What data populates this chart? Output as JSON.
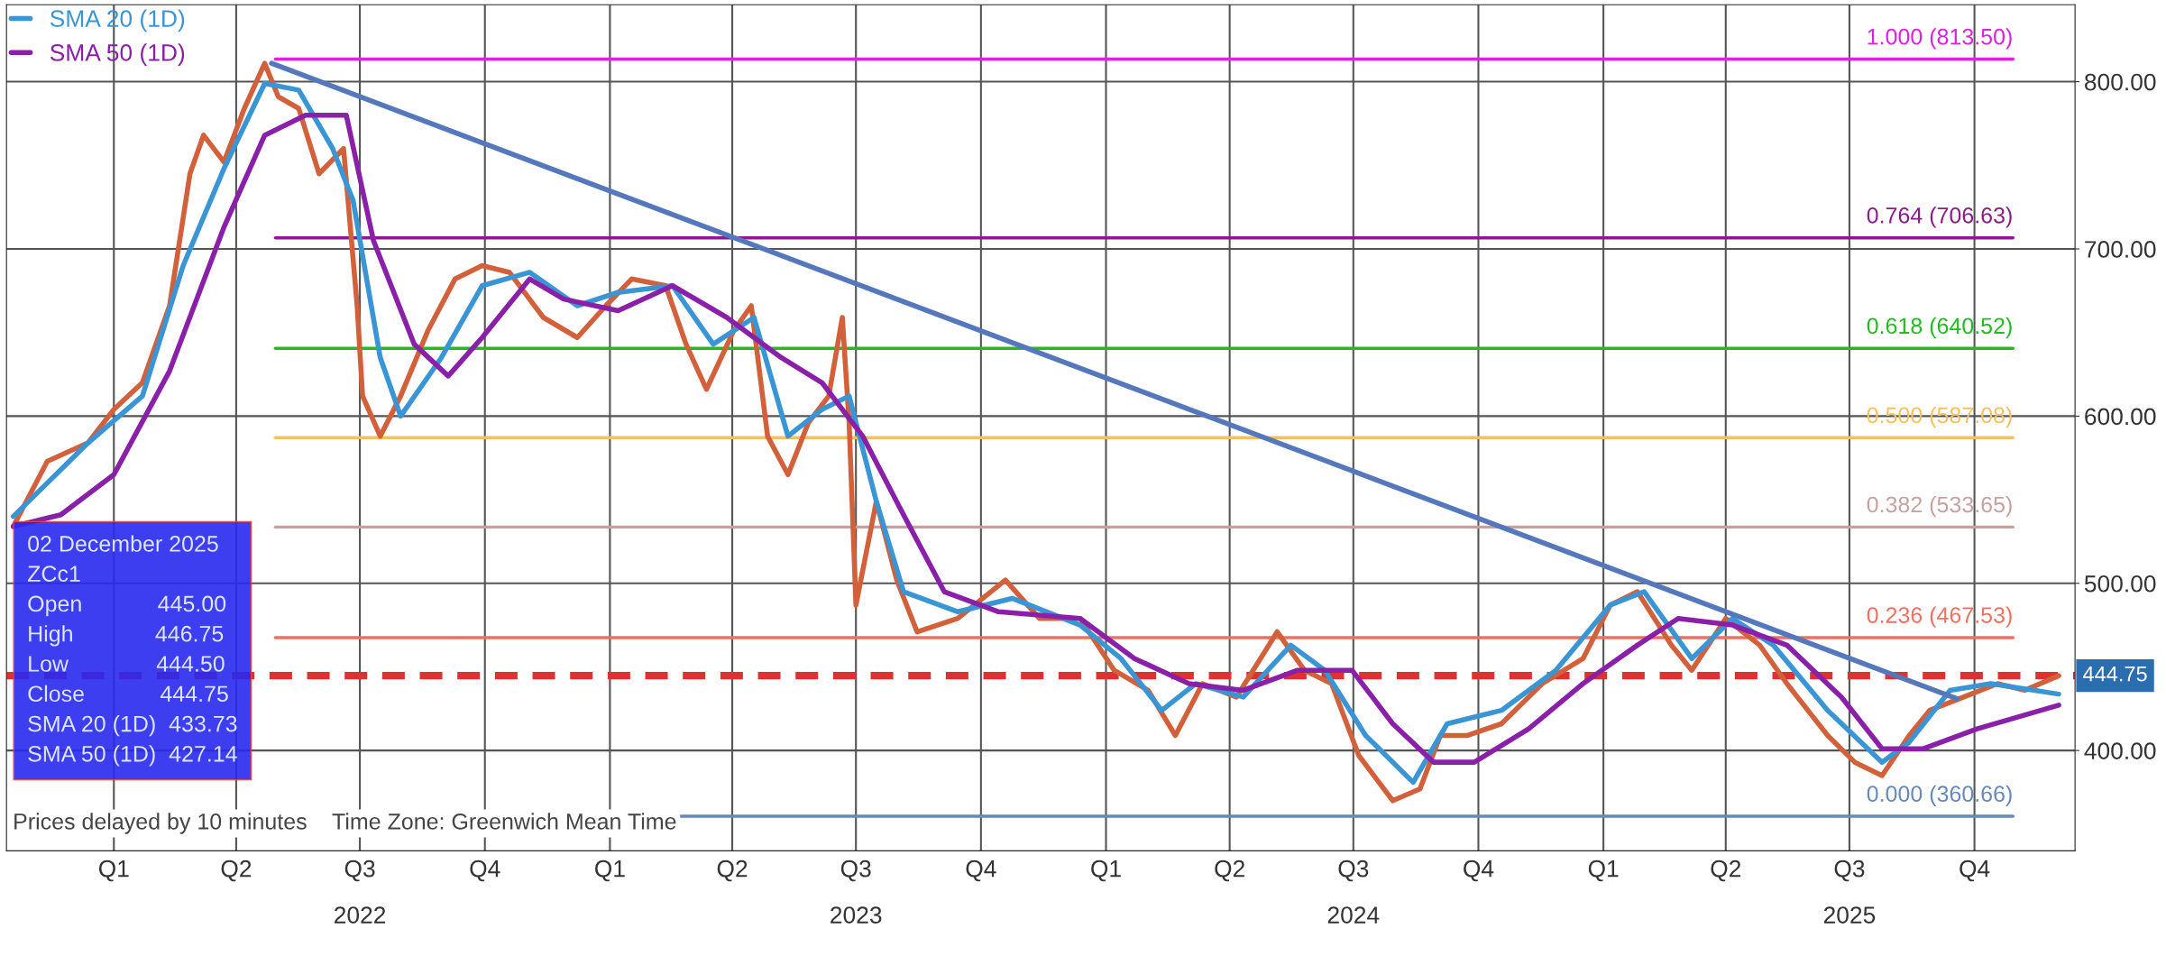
{
  "chart_data": {
    "type": "line",
    "xlim": [
      "2021-10-14",
      "2025-12-14"
    ],
    "ylim": [
      340,
      846
    ],
    "yticks": [
      {
        "value": 400,
        "label": "400.00"
      },
      {
        "value": 500,
        "label": "500.00"
      },
      {
        "value": 600,
        "label": "600.00"
      },
      {
        "value": 700,
        "label": "700.00"
      },
      {
        "value": 800,
        "label": "800.00"
      }
    ],
    "xticks": [
      {
        "value": "2022-01-01",
        "label": "Q1"
      },
      {
        "value": "2022-04-01",
        "label": "Q2"
      },
      {
        "value": "2022-07-01",
        "label": "Q3"
      },
      {
        "value": "2022-10-01",
        "label": "Q4"
      },
      {
        "value": "2023-01-01",
        "label": "Q1"
      },
      {
        "value": "2023-04-01",
        "label": "Q2"
      },
      {
        "value": "2023-07-01",
        "label": "Q3"
      },
      {
        "value": "2023-10-01",
        "label": "Q4"
      },
      {
        "value": "2024-01-01",
        "label": "Q1"
      },
      {
        "value": "2024-04-01",
        "label": "Q2"
      },
      {
        "value": "2024-07-01",
        "label": "Q3"
      },
      {
        "value": "2024-10-01",
        "label": "Q4"
      },
      {
        "value": "2025-01-01",
        "label": "Q1"
      },
      {
        "value": "2025-04-01",
        "label": "Q2"
      },
      {
        "value": "2025-07-01",
        "label": "Q3"
      },
      {
        "value": "2025-10-01",
        "label": "Q4"
      }
    ],
    "x2lim": [
      "2021-10-14",
      "2025-12-14"
    ],
    "x2ticks": [
      {
        "value": "2022-07-01",
        "label": "2022"
      },
      {
        "value": "2023-07-01",
        "label": "2023"
      },
      {
        "value": "2024-07-01",
        "label": "2024"
      },
      {
        "value": "2025-07-01",
        "label": "2025"
      }
    ],
    "grid": true,
    "legend": "top left",
    "series": [
      {
        "color": "#d2603a",
        "x": [
          "2021-10-19",
          "2021-11-13",
          "2021-12-13",
          "2022-01-01",
          "2022-01-22",
          "2022-02-11",
          "2022-02-26",
          "2022-03-08",
          "2022-03-23",
          "2022-04-07",
          "2022-04-22",
          "2022-05-02",
          "2022-05-17",
          "2022-06-01",
          "2022-06-19",
          "2022-06-29",
          "2022-07-03",
          "2022-07-16",
          "2022-07-31",
          "2022-08-20",
          "2022-09-09",
          "2022-09-29",
          "2022-10-19",
          "2022-11-13",
          "2022-12-08",
          "2022-12-29",
          "2023-01-17",
          "2023-02-11",
          "2023-02-26",
          "2023-03-13",
          "2023-04-02",
          "2023-04-15",
          "2023-04-27",
          "2023-05-12",
          "2023-05-27",
          "2023-06-11",
          "2023-06-21",
          "2023-06-26",
          "2023-07-01",
          "2023-07-16",
          "2023-07-31",
          "2023-08-15",
          "2023-09-14",
          "2023-10-19",
          "2023-11-13",
          "2023-12-13",
          "2024-01-07",
          "2024-02-01",
          "2024-02-21",
          "2024-03-12",
          "2024-04-06",
          "2024-05-06",
          "2024-05-26",
          "2024-06-15",
          "2024-07-05",
          "2024-07-30",
          "2024-08-19",
          "2024-09-03",
          "2024-09-23",
          "2024-10-18",
          "2024-11-17",
          "2024-12-17",
          "2025-01-06",
          "2025-01-26",
          "2025-02-20",
          "2025-03-07",
          "2025-04-01",
          "2025-04-26",
          "2025-05-16",
          "2025-06-15",
          "2025-07-05",
          "2025-07-25",
          "2025-08-14",
          "2025-08-29",
          "2025-09-23",
          "2025-10-18",
          "2025-11-07",
          "2025-12-02"
        ],
        "values": [
          534,
          573,
          584,
          604,
          620,
          666,
          745,
          768,
          752,
          784,
          811,
          791,
          784,
          745,
          760,
          666,
          612,
          588,
          612,
          651,
          682,
          690,
          686,
          659,
          647,
          666,
          682,
          678,
          643,
          616,
          651,
          666,
          588,
          565,
          596,
          612,
          659,
          596,
          487,
          549,
          502,
          471,
          479,
          502,
          479,
          479,
          448,
          436,
          409,
          440,
          432,
          471,
          448,
          440,
          397,
          370,
          377,
          409,
          409,
          416,
          440,
          455,
          487,
          495,
          463,
          448,
          479,
          463,
          440,
          409,
          393,
          385,
          409,
          424,
          432,
          440,
          436,
          444.75
        ]
      },
      {
        "name": "SMA 20 (1D)",
        "color": "#3a95d5",
        "x": [
          "2021-10-19",
          "2021-12-13",
          "2022-01-22",
          "2022-02-21",
          "2022-03-23",
          "2022-04-22",
          "2022-05-17",
          "2022-06-11",
          "2022-06-26",
          "2022-07-16",
          "2022-07-31",
          "2022-08-30",
          "2022-09-29",
          "2022-11-03",
          "2022-12-08",
          "2023-01-07",
          "2023-02-16",
          "2023-03-18",
          "2023-04-17",
          "2023-05-12",
          "2023-06-06",
          "2023-06-26",
          "2023-07-16",
          "2023-08-05",
          "2023-09-14",
          "2023-10-24",
          "2023-12-13",
          "2024-01-12",
          "2024-02-11",
          "2024-03-07",
          "2024-04-11",
          "2024-05-16",
          "2024-06-10",
          "2024-07-10",
          "2024-08-14",
          "2024-09-08",
          "2024-10-18",
          "2024-11-27",
          "2025-01-06",
          "2025-01-31",
          "2025-03-07",
          "2025-04-06",
          "2025-05-06",
          "2025-06-15",
          "2025-07-25",
          "2025-08-14",
          "2025-09-13",
          "2025-10-13",
          "2025-12-02"
        ],
        "values": [
          540,
          584,
          612,
          690,
          748,
          799,
          795,
          760,
          729,
          635,
          600,
          635,
          678,
          686,
          666,
          674,
          678,
          643,
          659,
          588,
          604,
          612,
          549,
          495,
          483,
          491,
          475,
          455,
          424,
          440,
          432,
          463,
          448,
          409,
          381,
          416,
          424,
          448,
          487,
          495,
          455,
          479,
          463,
          424,
          393,
          405,
          436,
          440,
          433.73
        ]
      },
      {
        "name": "SMA 50 (1D)",
        "color": "#8a1fa8",
        "x": [
          "2021-10-19",
          "2021-11-23",
          "2022-01-01",
          "2022-02-11",
          "2022-03-23",
          "2022-04-22",
          "2022-05-22",
          "2022-06-21",
          "2022-07-11",
          "2022-08-10",
          "2022-09-04",
          "2022-09-29",
          "2022-11-03",
          "2022-11-28",
          "2023-01-07",
          "2023-02-16",
          "2023-03-28",
          "2023-05-07",
          "2023-06-06",
          "2023-07-06",
          "2023-08-05",
          "2023-09-04",
          "2023-10-14",
          "2023-12-13",
          "2024-01-22",
          "2024-03-02",
          "2024-04-11",
          "2024-05-21",
          "2024-06-30",
          "2024-07-30",
          "2024-08-29",
          "2024-09-28",
          "2024-11-07",
          "2024-12-17",
          "2025-01-26",
          "2025-02-25",
          "2025-04-06",
          "2025-05-16",
          "2025-06-25",
          "2025-07-25",
          "2025-08-24",
          "2025-10-03",
          "2025-12-02"
        ],
        "values": [
          534,
          541,
          565,
          627,
          713,
          768,
          780,
          780,
          705,
          643,
          624,
          647,
          682,
          670,
          663,
          678,
          659,
          635,
          620,
          588,
          541,
          495,
          483,
          479,
          455,
          440,
          436,
          448,
          448,
          416,
          393,
          393,
          413,
          440,
          463,
          479,
          475,
          463,
          432,
          401,
          401,
          413,
          427.14
        ]
      },
      {
        "color": "#5577bb",
        "x": [
          "2022-04-27",
          "2025-09-18"
        ],
        "values": [
          811,
          431
        ]
      }
    ],
    "ref_lines": [
      {
        "axis": "y",
        "value": 813.5,
        "label": "1.000 (813.50)",
        "color": "#e020e0"
      },
      {
        "axis": "y",
        "value": 706.63,
        "label": "0.764 (706.63)",
        "color": "#8b1a8b"
      },
      {
        "axis": "y",
        "value": 640.52,
        "label": "0.618 (640.52)",
        "color": "#22bb22"
      },
      {
        "axis": "y",
        "value": 587.08,
        "label": "0.500 (587.08)",
        "color": "#f5c060"
      },
      {
        "axis": "y",
        "value": 533.65,
        "label": "0.382 (533.65)",
        "color": "#c8a0a0"
      },
      {
        "axis": "y",
        "value": 467.53,
        "label": "0.236 (467.53)",
        "color": "#f07060"
      },
      {
        "axis": "y",
        "value": 360.66,
        "label": "0.000 (360.66)",
        "color": "#6688bb"
      },
      {
        "axis": "y",
        "value": 444.75,
        "label": "444.75",
        "color": "#e03030",
        "line_style": "dashed"
      }
    ],
    "annotations": [
      "02 December 2025\nZCc1\nOpen            445.00\nHigh             446.75\nLow              444.50\nClose            444.75\nSMA 20 (1D)  433.73\nSMA 50 (1D)  427.14",
      "Prices delayed by 10 minutes    Time Zone: Greenwich Mean Time"
    ]
  }
}
